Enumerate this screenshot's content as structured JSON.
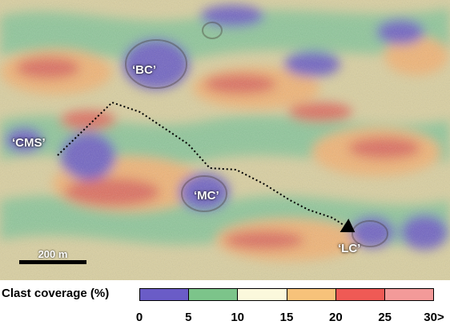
{
  "site_labels": [
    {
      "id": "bc",
      "text": "‘BC’"
    },
    {
      "id": "cms",
      "text": "‘CMS’"
    },
    {
      "id": "mc",
      "text": "‘MC’"
    },
    {
      "id": "lc",
      "text": "‘LC’"
    }
  ],
  "scale_bar": {
    "label": "200 m"
  },
  "legend": {
    "title": "Clast coverage (%)",
    "bins": [
      {
        "range": [
          0,
          5
        ],
        "color": "#6a5cc7"
      },
      {
        "range": [
          5,
          10
        ],
        "color": "#7cc48a"
      },
      {
        "range": [
          10,
          15
        ],
        "color": "#fbf8dc"
      },
      {
        "range": [
          15,
          20
        ],
        "color": "#f7c27a"
      },
      {
        "range": [
          20,
          25
        ],
        "color": "#ef5a55"
      },
      {
        "range": [
          25,
          30
        ],
        "color": "#f39a99"
      }
    ],
    "ticks": [
      "0",
      "5",
      "10",
      "15",
      "20",
      "25",
      "30>"
    ]
  },
  "traverse": {
    "style": "dotted",
    "color": "#000000",
    "arrow": "end"
  }
}
